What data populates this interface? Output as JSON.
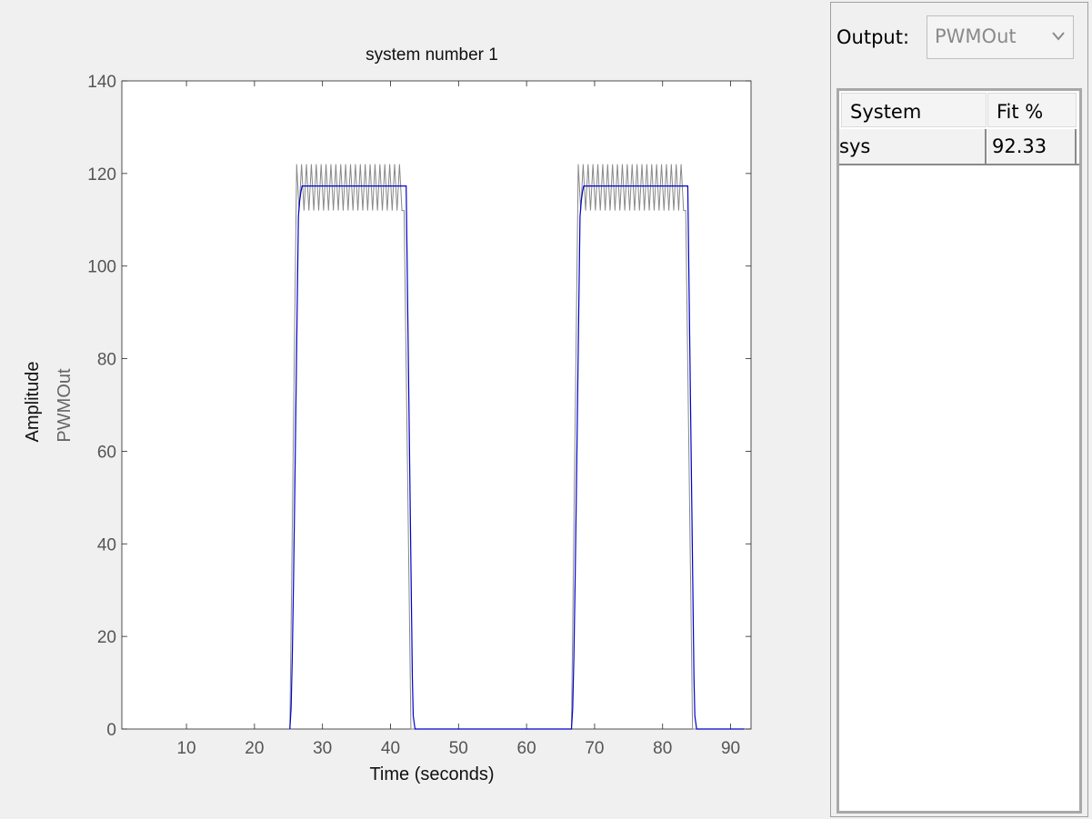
{
  "chart_data": {
    "type": "line",
    "title": "system number 1",
    "xlabel": "Time (seconds)",
    "ylabel": "Amplitude",
    "ylabel_sub": "PWMOut",
    "xlim": [
      0.5,
      93
    ],
    "ylim": [
      0,
      140
    ],
    "xticks": [
      10,
      20,
      30,
      40,
      50,
      60,
      70,
      80,
      90
    ],
    "yticks": [
      0,
      20,
      40,
      60,
      80,
      100,
      120,
      140
    ],
    "grid": false,
    "legend": "none",
    "series": [
      {
        "color": "#888888",
        "pulses": [
          {
            "start": 25.2,
            "rise_end": 26.2,
            "fall_start": 42.0,
            "fall_end": 43.0,
            "osc_low": 112,
            "osc_high": 122,
            "osc_period": 0.72
          },
          {
            "start": 66.6,
            "rise_end": 67.6,
            "fall_start": 83.4,
            "fall_end": 84.4,
            "osc_low": 112,
            "osc_high": 122,
            "osc_period": 0.72
          }
        ],
        "x_end": 92
      },
      {
        "color": "#0000cc",
        "pulses": [
          {
            "start": 25.2,
            "rise_end": 27.0,
            "plateau": 117.3,
            "fall_start": 42.3,
            "fall_end": 43.6
          },
          {
            "start": 66.6,
            "rise_end": 68.4,
            "plateau": 117.3,
            "fall_start": 83.7,
            "fall_end": 85.0
          }
        ],
        "x_end": 92
      }
    ]
  },
  "panel": {
    "output_label": "Output:",
    "output_value": "PWMOut",
    "table": {
      "headers": [
        "System",
        "Fit %"
      ],
      "rows": [
        [
          "sys",
          "92.33"
        ]
      ]
    }
  }
}
